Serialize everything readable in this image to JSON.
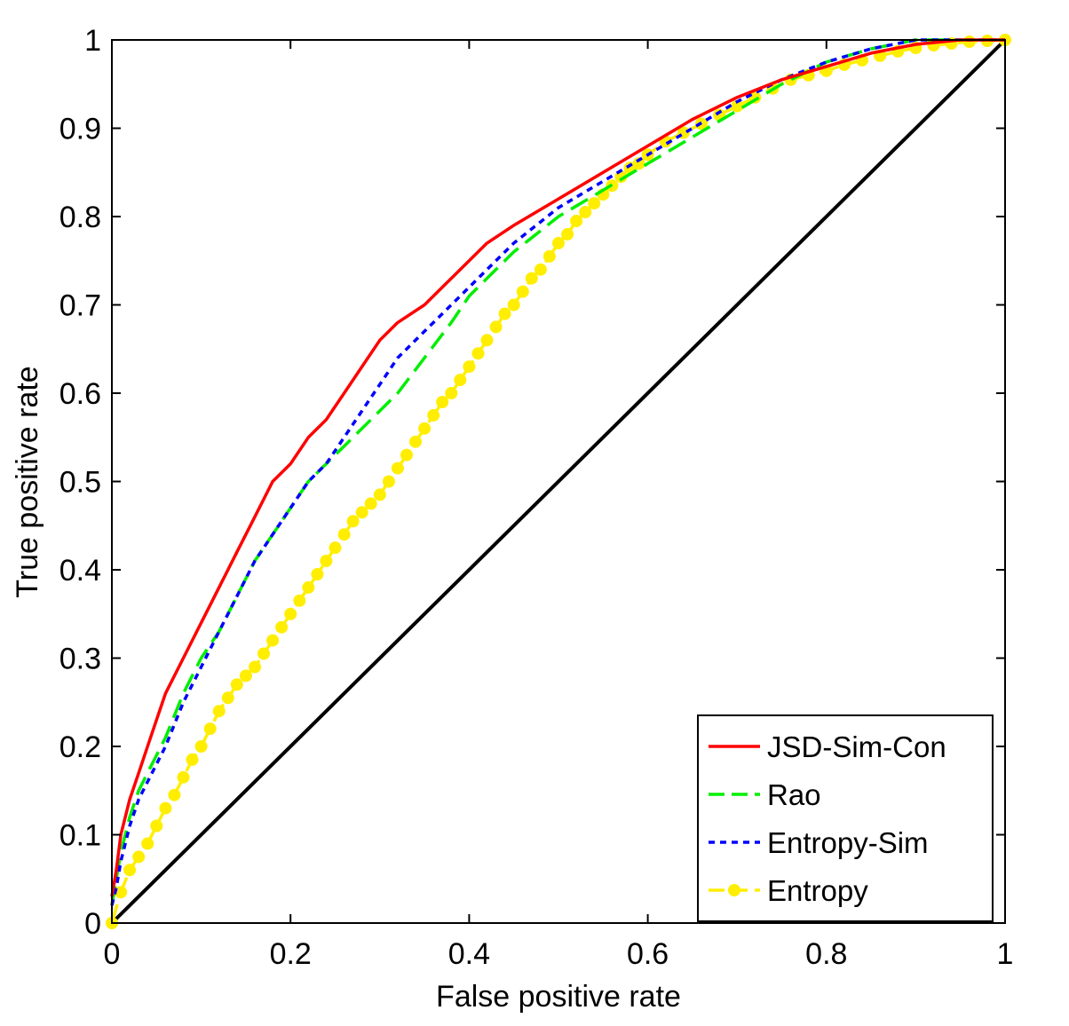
{
  "chart_data": {
    "type": "line",
    "title": "",
    "xlabel": "False positive rate",
    "ylabel": "True positive rate",
    "xlim": [
      0,
      1
    ],
    "ylim": [
      0,
      1
    ],
    "xticks": [
      "0",
      "0.2",
      "0.4",
      "0.6",
      "0.8",
      "1"
    ],
    "yticks": [
      "0",
      "0.1",
      "0.2",
      "0.3",
      "0.4",
      "0.5",
      "0.6",
      "0.7",
      "0.8",
      "0.9",
      "1"
    ],
    "grid": false,
    "legend_position": "bottom-right",
    "series": [
      {
        "name": "JSD-Sim-Con",
        "color": "#ff0000",
        "style": "solid",
        "x": [
          0,
          0.005,
          0.01,
          0.02,
          0.03,
          0.04,
          0.05,
          0.06,
          0.08,
          0.1,
          0.12,
          0.14,
          0.16,
          0.18,
          0.2,
          0.22,
          0.24,
          0.26,
          0.28,
          0.3,
          0.32,
          0.35,
          0.38,
          0.4,
          0.42,
          0.45,
          0.5,
          0.55,
          0.6,
          0.65,
          0.7,
          0.75,
          0.8,
          0.85,
          0.9,
          0.95,
          1
        ],
        "y": [
          0.03,
          0.06,
          0.1,
          0.14,
          0.17,
          0.2,
          0.23,
          0.26,
          0.3,
          0.34,
          0.38,
          0.42,
          0.46,
          0.5,
          0.52,
          0.55,
          0.57,
          0.6,
          0.63,
          0.66,
          0.68,
          0.7,
          0.73,
          0.75,
          0.77,
          0.79,
          0.82,
          0.85,
          0.88,
          0.91,
          0.935,
          0.955,
          0.97,
          0.985,
          0.995,
          1,
          1
        ]
      },
      {
        "name": "Rao",
        "color": "#00ee00",
        "style": "dashed",
        "x": [
          0,
          0.005,
          0.01,
          0.02,
          0.03,
          0.04,
          0.05,
          0.06,
          0.08,
          0.1,
          0.12,
          0.14,
          0.16,
          0.18,
          0.2,
          0.22,
          0.24,
          0.26,
          0.28,
          0.3,
          0.32,
          0.35,
          0.38,
          0.4,
          0.42,
          0.45,
          0.5,
          0.55,
          0.6,
          0.65,
          0.7,
          0.75,
          0.8,
          0.85,
          0.9,
          0.95,
          1
        ],
        "y": [
          0.02,
          0.05,
          0.08,
          0.12,
          0.15,
          0.17,
          0.19,
          0.21,
          0.26,
          0.3,
          0.33,
          0.37,
          0.41,
          0.44,
          0.47,
          0.5,
          0.52,
          0.54,
          0.56,
          0.58,
          0.6,
          0.64,
          0.68,
          0.71,
          0.73,
          0.76,
          0.8,
          0.83,
          0.86,
          0.89,
          0.92,
          0.95,
          0.975,
          0.99,
          1,
          1,
          1
        ]
      },
      {
        "name": "Entropy-Sim",
        "color": "#0000ff",
        "style": "dotted",
        "x": [
          0,
          0.005,
          0.01,
          0.02,
          0.03,
          0.04,
          0.05,
          0.06,
          0.08,
          0.1,
          0.12,
          0.14,
          0.16,
          0.18,
          0.2,
          0.22,
          0.24,
          0.26,
          0.28,
          0.3,
          0.32,
          0.35,
          0.38,
          0.4,
          0.42,
          0.45,
          0.5,
          0.55,
          0.6,
          0.65,
          0.7,
          0.75,
          0.8,
          0.85,
          0.9,
          0.95,
          1
        ],
        "y": [
          0.02,
          0.04,
          0.07,
          0.11,
          0.14,
          0.16,
          0.18,
          0.2,
          0.25,
          0.29,
          0.33,
          0.37,
          0.41,
          0.44,
          0.47,
          0.5,
          0.52,
          0.55,
          0.58,
          0.61,
          0.64,
          0.67,
          0.7,
          0.72,
          0.74,
          0.77,
          0.81,
          0.84,
          0.87,
          0.9,
          0.93,
          0.955,
          0.975,
          0.99,
          1,
          1,
          1
        ]
      },
      {
        "name": "Entropy",
        "color": "#ffee00",
        "style": "dashed-dot-marker",
        "x": [
          0,
          0.01,
          0.02,
          0.03,
          0.04,
          0.05,
          0.06,
          0.07,
          0.08,
          0.09,
          0.1,
          0.11,
          0.12,
          0.13,
          0.14,
          0.15,
          0.16,
          0.17,
          0.18,
          0.19,
          0.2,
          0.21,
          0.22,
          0.23,
          0.24,
          0.25,
          0.26,
          0.27,
          0.28,
          0.29,
          0.3,
          0.31,
          0.32,
          0.33,
          0.34,
          0.35,
          0.36,
          0.37,
          0.38,
          0.39,
          0.4,
          0.41,
          0.42,
          0.43,
          0.44,
          0.45,
          0.46,
          0.47,
          0.48,
          0.49,
          0.5,
          0.51,
          0.52,
          0.53,
          0.54,
          0.55,
          0.56,
          0.57,
          0.58,
          0.59,
          0.6,
          0.62,
          0.64,
          0.66,
          0.68,
          0.7,
          0.72,
          0.74,
          0.76,
          0.78,
          0.8,
          0.82,
          0.84,
          0.86,
          0.88,
          0.9,
          0.92,
          0.94,
          0.96,
          0.98,
          1
        ],
        "y": [
          0,
          0.035,
          0.06,
          0.075,
          0.09,
          0.11,
          0.13,
          0.145,
          0.165,
          0.185,
          0.2,
          0.22,
          0.24,
          0.255,
          0.27,
          0.28,
          0.29,
          0.305,
          0.32,
          0.335,
          0.35,
          0.365,
          0.38,
          0.395,
          0.41,
          0.425,
          0.44,
          0.455,
          0.465,
          0.475,
          0.485,
          0.5,
          0.515,
          0.53,
          0.545,
          0.56,
          0.575,
          0.59,
          0.6,
          0.615,
          0.63,
          0.645,
          0.66,
          0.675,
          0.69,
          0.7,
          0.715,
          0.73,
          0.74,
          0.755,
          0.77,
          0.78,
          0.795,
          0.805,
          0.815,
          0.825,
          0.835,
          0.845,
          0.855,
          0.86,
          0.87,
          0.885,
          0.895,
          0.905,
          0.915,
          0.925,
          0.935,
          0.945,
          0.955,
          0.96,
          0.965,
          0.972,
          0.977,
          0.982,
          0.987,
          0.991,
          0.994,
          0.996,
          0.998,
          0.999,
          1
        ]
      },
      {
        "name": "",
        "color": "#000000",
        "style": "solid",
        "x": [
          0,
          1
        ],
        "y": [
          0,
          1
        ]
      }
    ]
  }
}
